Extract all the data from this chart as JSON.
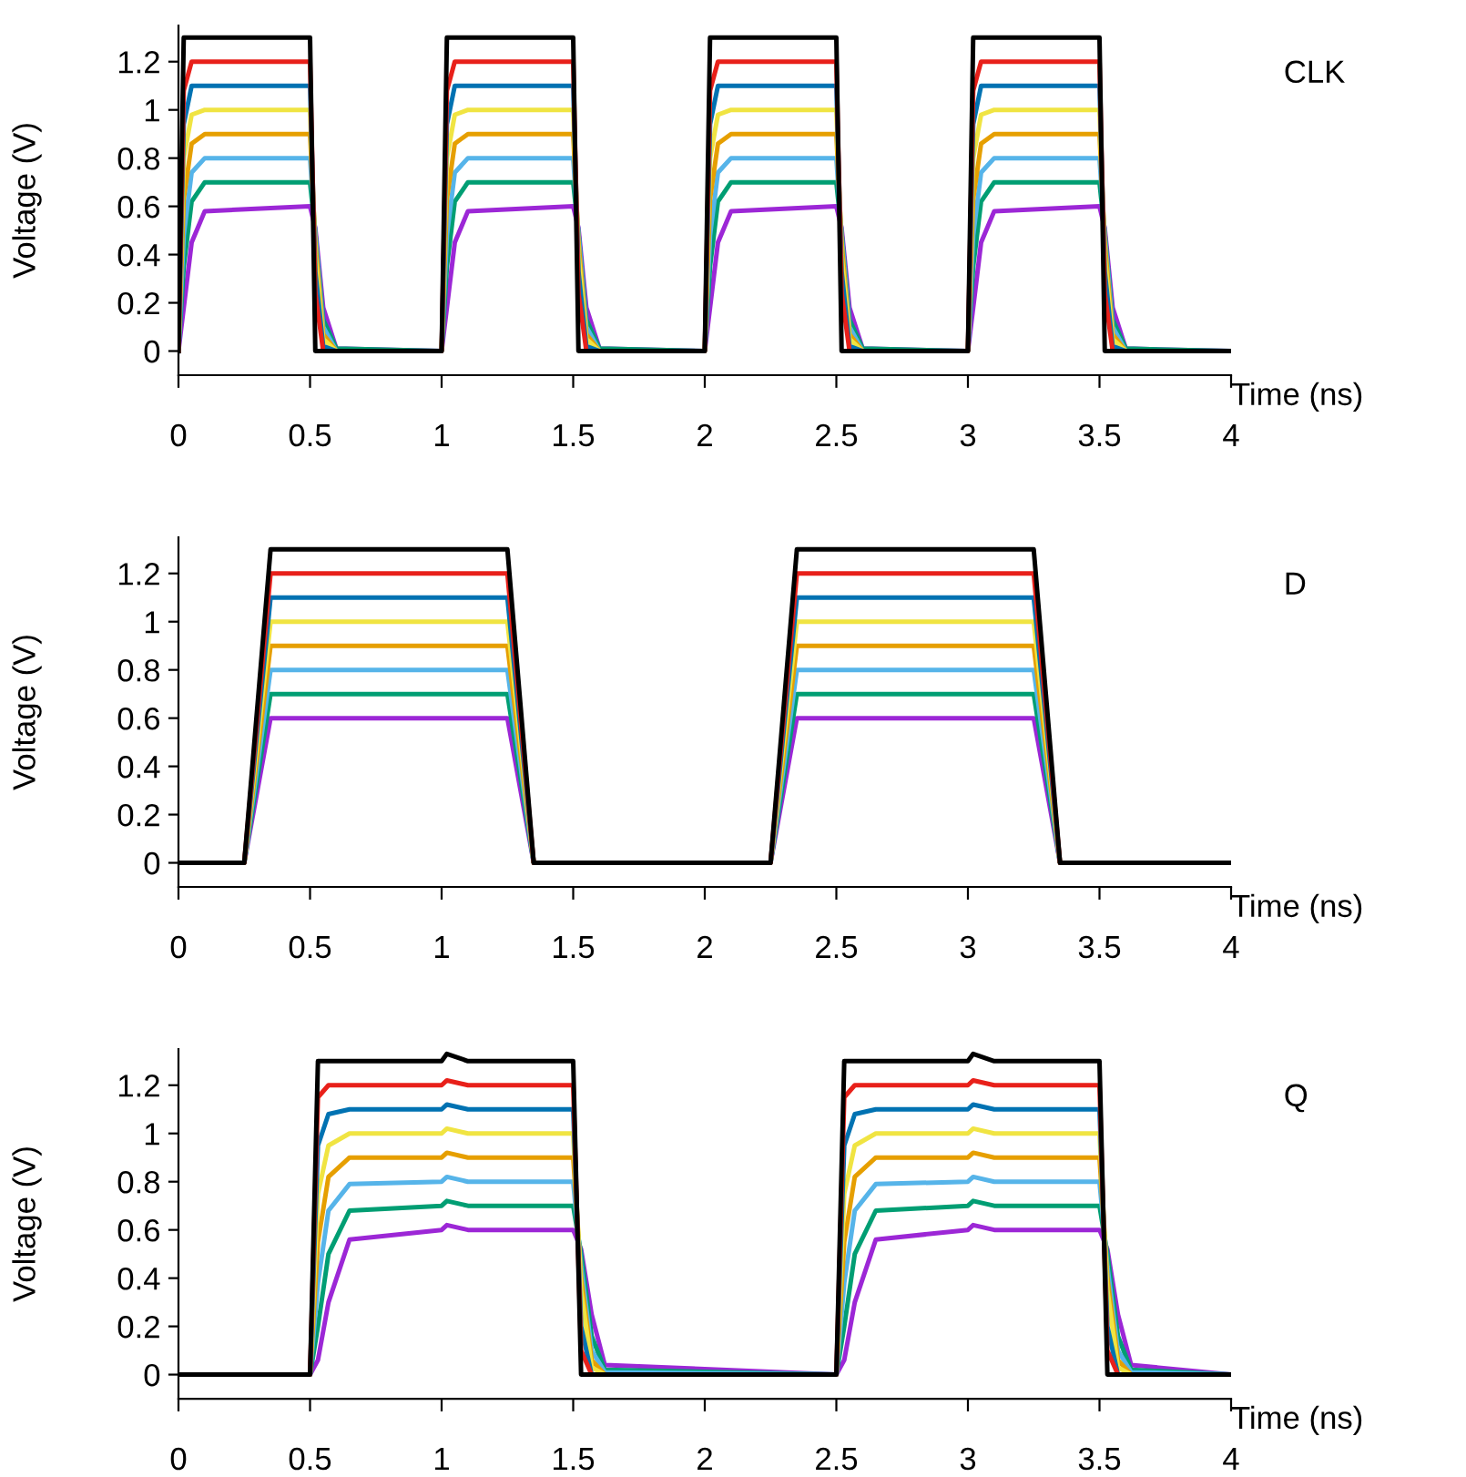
{
  "chart_data": [
    {
      "type": "line",
      "annotations": [
        "CLK"
      ],
      "xlabel": "Time (ns)",
      "ylabel": "Voltage (V)",
      "xlim": [
        0,
        4
      ],
      "ylim": [
        -0.1,
        1.35
      ],
      "xticks": [
        0,
        0.5,
        1,
        1.5,
        2,
        2.5,
        3,
        3.5,
        4
      ],
      "yticks": [
        0,
        0.2,
        0.4,
        0.6,
        0.8,
        1,
        1.2
      ],
      "x": [
        0,
        0.02,
        0.05,
        0.1,
        0.5,
        0.52,
        0.55,
        0.6,
        1,
        1.02,
        1.05,
        1.1,
        1.5,
        1.52,
        1.55,
        1.6,
        2,
        2.02,
        2.05,
        2.1,
        2.5,
        2.52,
        2.55,
        2.6,
        3,
        3.02,
        3.05,
        3.1,
        3.5,
        3.52,
        3.55,
        3.6,
        4
      ],
      "series": [
        {
          "color": "#9c27d6",
          "values": [
            0,
            0.18,
            0.45,
            0.58,
            0.6,
            0.51,
            0.18,
            0.01,
            0,
            0.18,
            0.45,
            0.58,
            0.6,
            0.51,
            0.18,
            0.01,
            0,
            0.18,
            0.45,
            0.58,
            0.6,
            0.51,
            0.18,
            0.01,
            0,
            0.18,
            0.45,
            0.58,
            0.6,
            0.51,
            0.18,
            0.01,
            0
          ]
        },
        {
          "color": "#009e73",
          "values": [
            0,
            0.35,
            0.62,
            0.7,
            0.7,
            0.49,
            0.13,
            0.01,
            0,
            0.35,
            0.62,
            0.7,
            0.7,
            0.49,
            0.13,
            0.01,
            0,
            0.35,
            0.62,
            0.7,
            0.7,
            0.49,
            0.13,
            0.01,
            0,
            0.35,
            0.62,
            0.7,
            0.7,
            0.49,
            0.13,
            0.01,
            0
          ]
        },
        {
          "color": "#56b4e9",
          "values": [
            0,
            0.48,
            0.74,
            0.8,
            0.8,
            0.48,
            0.1,
            0,
            0,
            0.48,
            0.74,
            0.8,
            0.8,
            0.48,
            0.1,
            0,
            0,
            0.48,
            0.74,
            0.8,
            0.8,
            0.48,
            0.1,
            0,
            0,
            0.48,
            0.74,
            0.8,
            0.8,
            0.48,
            0.1,
            0,
            0
          ]
        },
        {
          "color": "#e69f00",
          "values": [
            0,
            0.63,
            0.86,
            0.9,
            0.9,
            0.45,
            0.07,
            0,
            0,
            0.63,
            0.86,
            0.9,
            0.9,
            0.45,
            0.07,
            0,
            0,
            0.63,
            0.86,
            0.9,
            0.9,
            0.45,
            0.07,
            0,
            0,
            0.63,
            0.86,
            0.9,
            0.9,
            0.45,
            0.07,
            0,
            0
          ]
        },
        {
          "color": "#f0e442",
          "values": [
            0,
            0.8,
            0.98,
            1,
            1,
            0.4,
            0.05,
            0,
            0,
            0.8,
            0.98,
            1,
            1,
            0.4,
            0.05,
            0,
            0,
            0.8,
            0.98,
            1,
            1,
            0.4,
            0.05,
            0,
            0,
            0.8,
            0.98,
            1,
            1,
            0.4,
            0.05,
            0,
            0
          ]
        },
        {
          "color": "#0072b2",
          "values": [
            0,
            0.94,
            1.1,
            1.1,
            1.1,
            0.33,
            0.02,
            0,
            0,
            0.94,
            1.1,
            1.1,
            1.1,
            0.33,
            0.02,
            0,
            0,
            0.94,
            1.1,
            1.1,
            1.1,
            0.33,
            0.02,
            0,
            0,
            0.94,
            1.1,
            1.1,
            1.1,
            0.33,
            0.02,
            0,
            0
          ]
        },
        {
          "color": "#e8201a",
          "values": [
            0,
            1.08,
            1.2,
            1.2,
            1.2,
            0.24,
            0,
            0,
            0,
            1.08,
            1.2,
            1.2,
            1.2,
            0.24,
            0,
            0,
            0,
            1.08,
            1.2,
            1.2,
            1.2,
            0.24,
            0,
            0,
            0,
            1.08,
            1.2,
            1.2,
            1.2,
            0.24,
            0,
            0,
            0
          ]
        },
        {
          "color": "#000000",
          "values": [
            0,
            1.3,
            1.3,
            1.3,
            1.3,
            0,
            0,
            0,
            0,
            1.3,
            1.3,
            1.3,
            1.3,
            0,
            0,
            0,
            0,
            1.3,
            1.3,
            1.3,
            1.3,
            0,
            0,
            0,
            0,
            1.3,
            1.3,
            1.3,
            1.3,
            0,
            0,
            0,
            0
          ]
        }
      ]
    },
    {
      "type": "line",
      "annotations": [
        "D"
      ],
      "xlabel": "Time (ns)",
      "ylabel": "Voltage (V)",
      "xlim": [
        0,
        4
      ],
      "ylim": [
        -0.1,
        1.35
      ],
      "xticks": [
        0,
        0.5,
        1,
        1.5,
        2,
        2.5,
        3,
        3.5,
        4
      ],
      "yticks": [
        0,
        0.2,
        0.4,
        0.6,
        0.8,
        1,
        1.2
      ],
      "x": [
        0,
        0.25,
        0.35,
        1.25,
        1.35,
        2.25,
        2.35,
        3.25,
        3.35,
        4
      ],
      "series": [
        {
          "color": "#9c27d6",
          "values": [
            0,
            0,
            0.6,
            0.6,
            0,
            0,
            0.6,
            0.6,
            0,
            0
          ]
        },
        {
          "color": "#009e73",
          "values": [
            0,
            0,
            0.7,
            0.7,
            0,
            0,
            0.7,
            0.7,
            0,
            0
          ]
        },
        {
          "color": "#56b4e9",
          "values": [
            0,
            0,
            0.8,
            0.8,
            0,
            0,
            0.8,
            0.8,
            0,
            0
          ]
        },
        {
          "color": "#e69f00",
          "values": [
            0,
            0,
            0.9,
            0.9,
            0,
            0,
            0.9,
            0.9,
            0,
            0
          ]
        },
        {
          "color": "#f0e442",
          "values": [
            0,
            0,
            1,
            1,
            0,
            0,
            1,
            1,
            0,
            0
          ]
        },
        {
          "color": "#0072b2",
          "values": [
            0,
            0,
            1.1,
            1.1,
            0,
            0,
            1.1,
            1.1,
            0,
            0
          ]
        },
        {
          "color": "#e8201a",
          "values": [
            0,
            0,
            1.2,
            1.2,
            0,
            0,
            1.2,
            1.2,
            0,
            0
          ]
        },
        {
          "color": "#000000",
          "values": [
            0,
            0,
            1.3,
            1.3,
            0,
            0,
            1.3,
            1.3,
            0,
            0
          ]
        }
      ]
    },
    {
      "type": "line",
      "annotations": [
        "Q"
      ],
      "xlabel": "Time (ns)",
      "ylabel": "Voltage (V)",
      "xlim": [
        0,
        4
      ],
      "ylim": [
        -0.1,
        1.35
      ],
      "xticks": [
        0,
        0.5,
        1,
        1.5,
        2,
        2.5,
        3,
        3.5,
        4
      ],
      "yticks": [
        0,
        0.2,
        0.4,
        0.6,
        0.8,
        1,
        1.2
      ],
      "x": [
        0,
        0.5,
        0.53,
        0.57,
        0.65,
        1,
        1.02,
        1.1,
        1.5,
        1.53,
        1.57,
        1.62,
        2.5,
        2.53,
        2.57,
        2.65,
        3,
        3.02,
        3.1,
        3.5,
        3.53,
        3.57,
        3.62,
        4
      ],
      "series": [
        {
          "color": "#9c27d6",
          "values": [
            0,
            0,
            0.06,
            0.3,
            0.56,
            0.6,
            0.62,
            0.6,
            0.6,
            0.52,
            0.25,
            0.04,
            0,
            0.06,
            0.3,
            0.56,
            0.6,
            0.62,
            0.6,
            0.6,
            0.52,
            0.25,
            0.04,
            0
          ]
        },
        {
          "color": "#009e73",
          "values": [
            0,
            0,
            0.2,
            0.5,
            0.68,
            0.7,
            0.72,
            0.7,
            0.7,
            0.5,
            0.16,
            0.02,
            0,
            0.2,
            0.5,
            0.68,
            0.7,
            0.72,
            0.7,
            0.7,
            0.5,
            0.16,
            0.02,
            0
          ]
        },
        {
          "color": "#56b4e9",
          "values": [
            0,
            0,
            0.38,
            0.68,
            0.79,
            0.8,
            0.82,
            0.8,
            0.8,
            0.45,
            0.1,
            0.01,
            0,
            0.38,
            0.68,
            0.79,
            0.8,
            0.82,
            0.8,
            0.8,
            0.45,
            0.1,
            0.01,
            0
          ]
        },
        {
          "color": "#e69f00",
          "values": [
            0,
            0,
            0.55,
            0.82,
            0.9,
            0.9,
            0.92,
            0.9,
            0.9,
            0.4,
            0.06,
            0,
            0,
            0.55,
            0.82,
            0.9,
            0.9,
            0.92,
            0.9,
            0.9,
            0.4,
            0.06,
            0,
            0
          ]
        },
        {
          "color": "#f0e442",
          "values": [
            0,
            0,
            0.75,
            0.95,
            1,
            1,
            1.02,
            1,
            1,
            0.35,
            0.03,
            0,
            0,
            0.75,
            0.95,
            1,
            1,
            1.02,
            1,
            1,
            0.35,
            0.03,
            0,
            0
          ]
        },
        {
          "color": "#0072b2",
          "values": [
            0,
            0,
            0.95,
            1.08,
            1.1,
            1.1,
            1.12,
            1.1,
            1.1,
            0.2,
            0,
            0,
            0,
            0.95,
            1.08,
            1.1,
            1.1,
            1.12,
            1.1,
            1.1,
            0.2,
            0,
            0,
            0
          ]
        },
        {
          "color": "#e8201a",
          "values": [
            0,
            0,
            1.15,
            1.2,
            1.2,
            1.2,
            1.22,
            1.2,
            1.2,
            0.1,
            0,
            0,
            0,
            1.15,
            1.2,
            1.2,
            1.2,
            1.22,
            1.2,
            1.2,
            0.1,
            0,
            0,
            0
          ]
        },
        {
          "color": "#000000",
          "values": [
            0,
            0,
            1.3,
            1.3,
            1.3,
            1.3,
            1.33,
            1.3,
            1.3,
            0,
            0,
            0,
            0,
            1.3,
            1.3,
            1.3,
            1.3,
            1.33,
            1.3,
            1.3,
            0,
            0,
            0,
            0
          ]
        }
      ]
    }
  ]
}
